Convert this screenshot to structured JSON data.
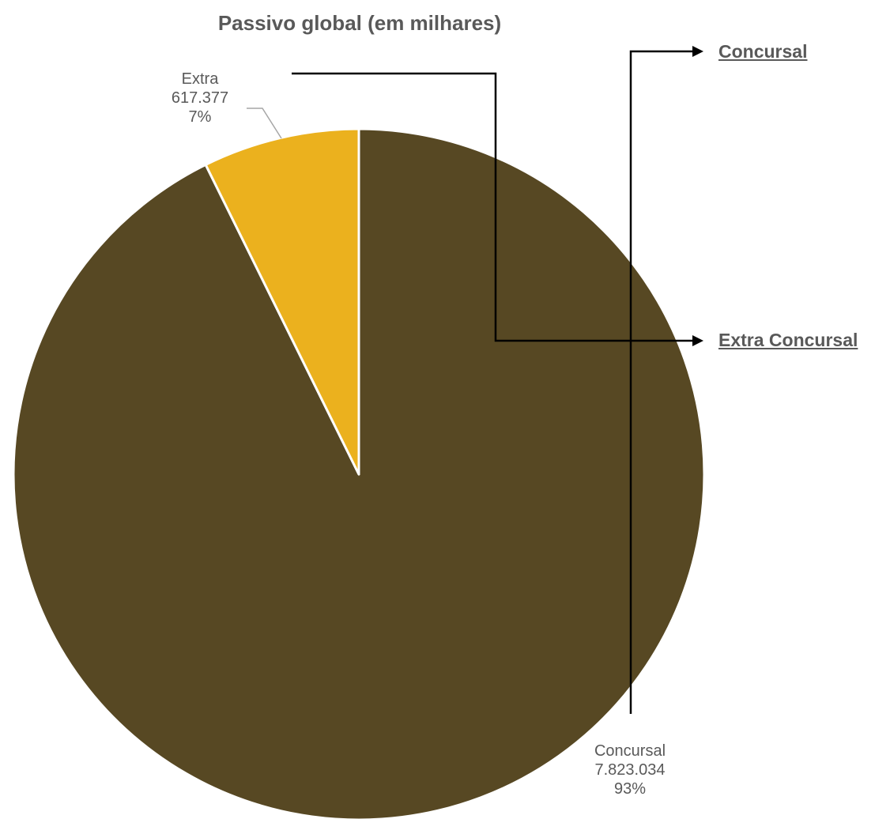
{
  "chart_data": {
    "type": "pie",
    "title": "Passivo global (em milhares)",
    "slices": [
      {
        "label": "Concursal",
        "value": 7823034,
        "value_label": "7.823.034",
        "percent_label": "93%",
        "color": "#574823"
      },
      {
        "label": "Extra",
        "value": 617377,
        "value_label": "617.377",
        "percent_label": "7%",
        "color": "#EBB11E"
      }
    ],
    "start_angle": "12 o'clock",
    "direction": "clockwise",
    "slice_border_color": "#ffffff",
    "legend": {
      "placement": "right",
      "style": "arrow-links",
      "items": [
        {
          "label": "Concursal"
        },
        {
          "label": "Extra Concursal"
        }
      ]
    },
    "text_color": "#595959",
    "leader_line_color": "#A6A6A6"
  }
}
